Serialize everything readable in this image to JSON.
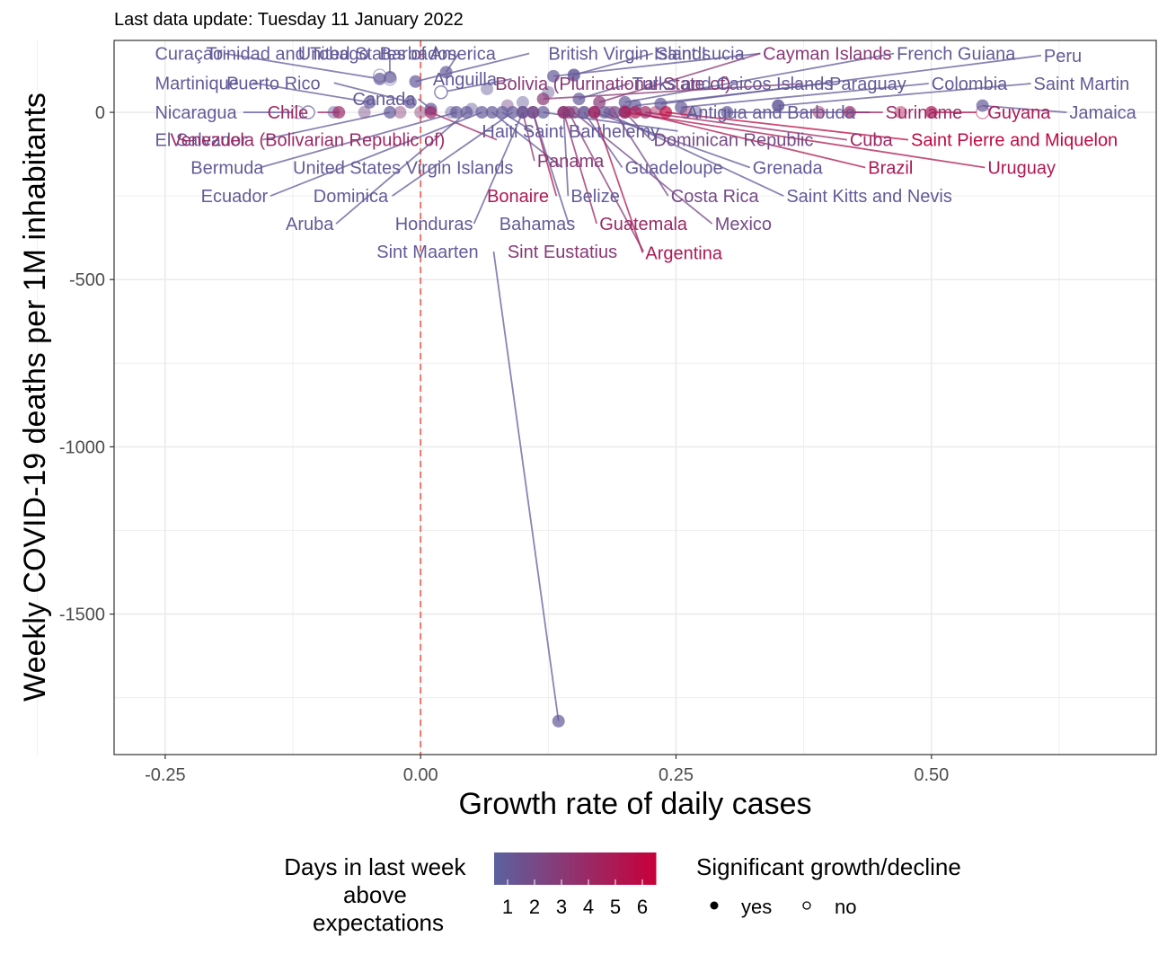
{
  "chart_data": {
    "type": "scatter",
    "subtitle": "Last data update: Tuesday 11 January 2022",
    "xlabel": "Growth rate of daily cases",
    "ylabel": "Weekly COVID-19 deaths per 1M inhabitants",
    "xlim": [
      -0.3,
      0.72
    ],
    "ylim": [
      -1920,
      215
    ],
    "x_ticks": [
      -0.25,
      0.0,
      0.25,
      0.5
    ],
    "x_tick_labels": [
      "-0.25",
      "0.00",
      "0.25",
      "0.50"
    ],
    "y_ticks": [
      0,
      -500,
      -1000,
      -1500
    ],
    "y_tick_labels": [
      "0",
      "-500",
      "-1000",
      "-1500"
    ],
    "reference_line": {
      "x": 0,
      "style": "dashed",
      "color": "#e8766d"
    },
    "grid": true,
    "color_scale": {
      "title": "Days in last week above expectations",
      "title_lines": [
        "Days in last week",
        "above",
        "expectations"
      ],
      "low": "#5b62a0",
      "high": "#c8003a",
      "ticks": [
        "1",
        "2",
        "3",
        "4",
        "5",
        "6"
      ]
    },
    "shape_legend": {
      "title": "Significant growth/decline",
      "items": [
        {
          "label": "yes",
          "filled": true
        },
        {
          "label": "no",
          "filled": false
        }
      ]
    },
    "points": [
      {
        "label": "Curaçao",
        "x": -0.04,
        "y": 100,
        "days": 1,
        "sig": true,
        "lx": -0.26,
        "ly": 176,
        "anchor": "start"
      },
      {
        "label": "Trinidad and Tobago",
        "x": -0.03,
        "y": 105,
        "days": 1,
        "sig": true,
        "lx": -0.21,
        "ly": 176,
        "anchor": "start"
      },
      {
        "label": "United States of America",
        "x": -0.005,
        "y": 92,
        "days": 1,
        "sig": true,
        "lx": -0.12,
        "ly": 176,
        "anchor": "start"
      },
      {
        "label": "Barbados",
        "x": 0.025,
        "y": 120,
        "days": 1,
        "sig": true,
        "lx": -0.04,
        "ly": 176,
        "anchor": "start"
      },
      {
        "label": "British Virgin Islands",
        "x": 0.13,
        "y": 108,
        "days": 1,
        "sig": true,
        "lx": 0.125,
        "ly": 176,
        "anchor": "start"
      },
      {
        "label": "Saint Lucia",
        "x": 0.15,
        "y": 112,
        "days": 1,
        "sig": true,
        "lx": 0.23,
        "ly": 176,
        "anchor": "start"
      },
      {
        "label": "Cayman Islands",
        "x": 0.175,
        "y": 30,
        "days": 3,
        "sig": true,
        "lx": 0.335,
        "ly": 176,
        "anchor": "start"
      },
      {
        "label": "French Guiana",
        "x": 0.2,
        "y": 30,
        "days": 1,
        "sig": true,
        "lx": 0.466,
        "ly": 176,
        "anchor": "start"
      },
      {
        "label": "Peru",
        "x": 0.235,
        "y": 25,
        "days": 1,
        "sig": true,
        "lx": 0.61,
        "ly": 170,
        "anchor": "start"
      },
      {
        "label": "Anguilla",
        "x": 0.02,
        "y": 60,
        "days": 1,
        "sig": false,
        "lx": 0.012,
        "ly": 100,
        "anchor": "start"
      },
      {
        "label": "Martinique",
        "x": -0.05,
        "y": 30,
        "days": 1,
        "sig": true,
        "lx": -0.26,
        "ly": 88,
        "anchor": "start"
      },
      {
        "label": "Puerto Rico",
        "x": -0.01,
        "y": 30,
        "days": 1,
        "sig": true,
        "lx": -0.19,
        "ly": 88,
        "anchor": "start"
      },
      {
        "label": "Bolivia (Plurinational State of)",
        "x": 0.12,
        "y": 40,
        "days": 3,
        "sig": true,
        "lx": 0.073,
        "ly": 86,
        "anchor": "start"
      },
      {
        "label": "Turks and Caicos Islands",
        "x": 0.155,
        "y": 40,
        "days": 1,
        "sig": true,
        "lx": 0.207,
        "ly": 86,
        "anchor": "start"
      },
      {
        "label": "Paraguay",
        "x": 0.21,
        "y": 20,
        "days": 1,
        "sig": true,
        "lx": 0.4,
        "ly": 86,
        "anchor": "start"
      },
      {
        "label": "Colombia",
        "x": 0.255,
        "y": 15,
        "days": 1,
        "sig": true,
        "lx": 0.5,
        "ly": 86,
        "anchor": "start"
      },
      {
        "label": "Saint Martin",
        "x": 0.35,
        "y": 20,
        "days": 1,
        "sig": true,
        "lx": 0.6,
        "ly": 86,
        "anchor": "start"
      },
      {
        "label": "Canada",
        "x": 0.01,
        "y": 10,
        "days": 1,
        "sig": true,
        "lx": -0.005,
        "ly": 40,
        "anchor": "end"
      },
      {
        "label": "Nicaragua",
        "x": -0.11,
        "y": 0,
        "days": 1,
        "sig": false,
        "lx": -0.26,
        "ly": 0,
        "anchor": "start"
      },
      {
        "label": "Chile",
        "x": -0.08,
        "y": 0,
        "days": 4,
        "sig": true,
        "lx": -0.15,
        "ly": 0,
        "anchor": "start"
      },
      {
        "label": "Antigua and Barbuda",
        "x": 0.3,
        "y": 0,
        "days": 1,
        "sig": true,
        "lx": 0.26,
        "ly": 0,
        "anchor": "start"
      },
      {
        "label": "Suriname",
        "x": 0.42,
        "y": 0,
        "days": 4,
        "sig": true,
        "lx": 0.455,
        "ly": 0,
        "anchor": "start"
      },
      {
        "label": "Guyana",
        "x": 0.5,
        "y": 0,
        "days": 5,
        "sig": true,
        "lx": 0.555,
        "ly": 0,
        "anchor": "start"
      },
      {
        "label": "Jamaica",
        "x": 0.55,
        "y": 20,
        "days": 1,
        "sig": true,
        "lx": 0.635,
        "ly": 0,
        "anchor": "start"
      },
      {
        "label": "El Salvador",
        "x": -0.03,
        "y": 0,
        "days": 1,
        "sig": true,
        "lx": -0.26,
        "ly": -82,
        "anchor": "start"
      },
      {
        "label": "Venezuela (Bolivarian Republic of)",
        "x": 0.01,
        "y": 0,
        "days": 4,
        "sig": true,
        "lx": -0.245,
        "ly": -82,
        "anchor": "start"
      },
      {
        "label": "Haiti",
        "x": 0.08,
        "y": 0,
        "days": 1,
        "sig": true,
        "lx": 0.06,
        "ly": -56,
        "anchor": "start"
      },
      {
        "label": "Saint Barthelemy",
        "x": 0.12,
        "y": 0,
        "days": 1,
        "sig": true,
        "lx": 0.1,
        "ly": -56,
        "anchor": "start"
      },
      {
        "label": "Dominican Republic",
        "x": 0.2,
        "y": 0,
        "days": 2,
        "sig": true,
        "lx": 0.228,
        "ly": -82,
        "anchor": "start"
      },
      {
        "label": "Cuba",
        "x": 0.22,
        "y": 0,
        "days": 4,
        "sig": true,
        "lx": 0.42,
        "ly": -82,
        "anchor": "start"
      },
      {
        "label": "Saint Pierre and Miquelon",
        "x": 0.24,
        "y": 0,
        "days": 6,
        "sig": true,
        "lx": 0.48,
        "ly": -82,
        "anchor": "start"
      },
      {
        "label": "Bermuda",
        "x": 0.035,
        "y": 0,
        "days": 1,
        "sig": true,
        "lx": -0.225,
        "ly": -165,
        "anchor": "start"
      },
      {
        "label": "United States Virgin Islands",
        "x": 0.07,
        "y": 0,
        "days": 1,
        "sig": true,
        "lx": -0.125,
        "ly": -165,
        "anchor": "start"
      },
      {
        "label": "Panama",
        "x": 0.1,
        "y": 0,
        "days": 3,
        "sig": true,
        "lx": 0.114,
        "ly": -145,
        "anchor": "start"
      },
      {
        "label": "Guadeloupe",
        "x": 0.16,
        "y": 0,
        "days": 1,
        "sig": true,
        "lx": 0.2,
        "ly": -165,
        "anchor": "start"
      },
      {
        "label": "Grenada",
        "x": 0.17,
        "y": 0,
        "days": 1,
        "sig": true,
        "lx": 0.325,
        "ly": -165,
        "anchor": "start"
      },
      {
        "label": "Brazil",
        "x": 0.21,
        "y": 0,
        "days": 5,
        "sig": true,
        "lx": 0.438,
        "ly": -165,
        "anchor": "start"
      },
      {
        "label": "Uruguay",
        "x": 0.2,
        "y": 0,
        "days": 5,
        "sig": true,
        "lx": 0.555,
        "ly": -165,
        "anchor": "start"
      },
      {
        "label": "Ecuador",
        "x": 0.06,
        "y": 0,
        "days": 1,
        "sig": true,
        "lx": -0.215,
        "ly": -250,
        "anchor": "start"
      },
      {
        "label": "Dominica",
        "x": 0.09,
        "y": 0,
        "days": 1,
        "sig": true,
        "lx": -0.105,
        "ly": -250,
        "anchor": "start"
      },
      {
        "label": "Bonaire",
        "x": 0.11,
        "y": 0,
        "days": 5,
        "sig": true,
        "lx": 0.065,
        "ly": -250,
        "anchor": "start"
      },
      {
        "label": "Belize",
        "x": 0.14,
        "y": 0,
        "days": 1,
        "sig": true,
        "lx": 0.147,
        "ly": -250,
        "anchor": "start"
      },
      {
        "label": "Costa Rica",
        "x": 0.19,
        "y": 0,
        "days": 2,
        "sig": true,
        "lx": 0.245,
        "ly": -250,
        "anchor": "start"
      },
      {
        "label": "Saint Kitts and Nevis",
        "x": 0.18,
        "y": 0,
        "days": 1,
        "sig": true,
        "lx": 0.358,
        "ly": -250,
        "anchor": "start"
      },
      {
        "label": "Aruba",
        "x": 0.045,
        "y": 0,
        "days": 1,
        "sig": true,
        "lx": -0.132,
        "ly": -333,
        "anchor": "start"
      },
      {
        "label": "Honduras",
        "x": 0.1,
        "y": 0,
        "days": 1,
        "sig": true,
        "lx": -0.025,
        "ly": -333,
        "anchor": "start"
      },
      {
        "label": "Bahamas",
        "x": 0.11,
        "y": 0,
        "days": 1,
        "sig": true,
        "lx": 0.077,
        "ly": -333,
        "anchor": "start"
      },
      {
        "label": "Guatemala",
        "x": 0.14,
        "y": 0,
        "days": 4,
        "sig": true,
        "lx": 0.175,
        "ly": -333,
        "anchor": "start"
      },
      {
        "label": "Mexico",
        "x": 0.15,
        "y": 0,
        "days": 2,
        "sig": true,
        "lx": 0.288,
        "ly": -333,
        "anchor": "start"
      },
      {
        "label": "Sint Maarten",
        "x": 0.135,
        "y": -1820,
        "days": 1,
        "sig": true,
        "lx": -0.043,
        "ly": -416,
        "anchor": "start"
      },
      {
        "label": "Sint Eustatius",
        "x": 0.145,
        "y": 0,
        "days": 3,
        "sig": true,
        "lx": 0.085,
        "ly": -416,
        "anchor": "start"
      },
      {
        "label": "Argentina",
        "x": 0.17,
        "y": 0,
        "days": 5,
        "sig": true,
        "lx": 0.22,
        "ly": -420,
        "anchor": "start"
      }
    ],
    "extra_points": [
      {
        "x": -0.085,
        "y": 0,
        "days": 1,
        "sig": true
      },
      {
        "x": -0.055,
        "y": 0,
        "days": 2,
        "sig": true
      },
      {
        "x": -0.02,
        "y": 0,
        "days": 3,
        "sig": true
      },
      {
        "x": 0.0,
        "y": 0,
        "days": 3,
        "sig": true
      },
      {
        "x": 0.03,
        "y": 0,
        "days": 1,
        "sig": true
      },
      {
        "x": 0.05,
        "y": 10,
        "days": 1,
        "sig": true
      },
      {
        "x": 0.065,
        "y": 70,
        "days": 1,
        "sig": true
      },
      {
        "x": 0.085,
        "y": 20,
        "days": 2,
        "sig": true
      },
      {
        "x": 0.1,
        "y": 30,
        "days": 1,
        "sig": true
      },
      {
        "x": 0.125,
        "y": 60,
        "days": 1,
        "sig": true
      },
      {
        "x": 0.15,
        "y": 110,
        "days": 1,
        "sig": true
      },
      {
        "x": 0.16,
        "y": 0,
        "days": 2,
        "sig": true
      },
      {
        "x": 0.185,
        "y": 0,
        "days": 3,
        "sig": true
      },
      {
        "x": 0.2,
        "y": 5,
        "days": 2,
        "sig": true
      },
      {
        "x": 0.23,
        "y": 0,
        "days": 5,
        "sig": true
      },
      {
        "x": 0.26,
        "y": 0,
        "days": 4,
        "sig": true
      },
      {
        "x": 0.27,
        "y": 0,
        "days": 1,
        "sig": true
      },
      {
        "x": 0.35,
        "y": 20,
        "days": 1,
        "sig": true
      },
      {
        "x": 0.39,
        "y": 0,
        "days": 5,
        "sig": true
      },
      {
        "x": 0.47,
        "y": 0,
        "days": 5,
        "sig": true
      },
      {
        "x": 0.55,
        "y": 0,
        "days": 5,
        "sig": false
      },
      {
        "x": -0.03,
        "y": 100,
        "days": 1,
        "sig": false
      },
      {
        "x": -0.04,
        "y": 110,
        "days": 1,
        "sig": false
      },
      {
        "x": -0.12,
        "y": 0,
        "days": 1,
        "sig": false
      }
    ]
  }
}
